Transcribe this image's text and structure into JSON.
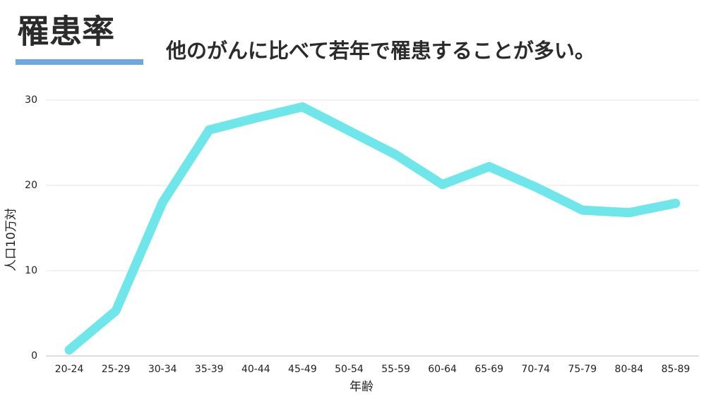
{
  "chart_data": {
    "type": "line",
    "title": "罹患率",
    "subtitle": "他のがんに比べて若年で罹患することが多い。",
    "x_label": "年齢",
    "y_label": "人口10万対",
    "categories": [
      "20-24",
      "25-29",
      "30-34",
      "35-39",
      "40-44",
      "45-49",
      "50-54",
      "55-59",
      "60-64",
      "65-69",
      "70-74",
      "75-79",
      "80-84",
      "85-89"
    ],
    "values": [
      0.7,
      5.3,
      18.0,
      26.5,
      27.9,
      29.2,
      26.4,
      23.6,
      20.1,
      22.2,
      19.8,
      17.1,
      16.8,
      17.9
    ],
    "color": "#6ee6ea",
    "ylim": [
      0,
      30
    ],
    "yticks": [
      0,
      10,
      20,
      30
    ],
    "grid": true
  }
}
